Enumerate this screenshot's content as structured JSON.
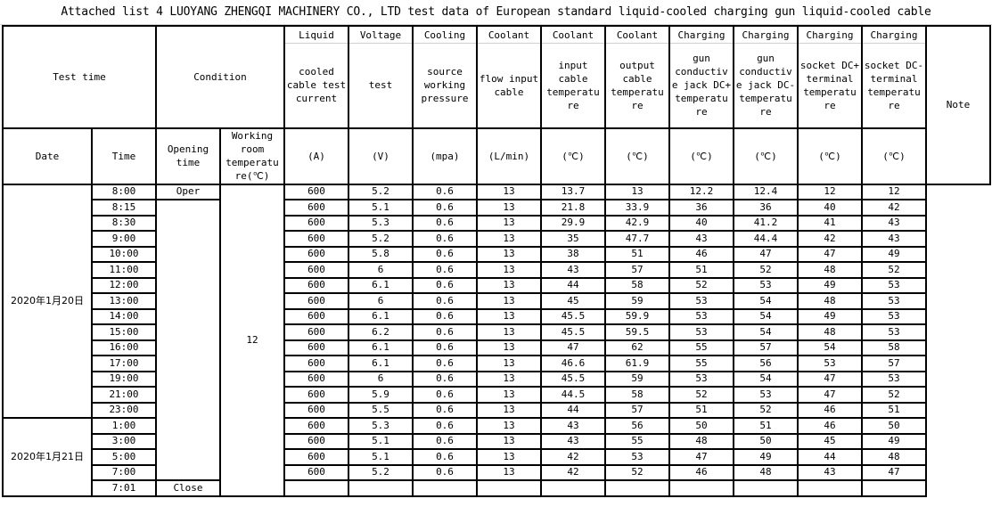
{
  "title": "Attached list 4 LUOYANG ZHENGQI MACHINERY CO., LTD test data of European standard liquid-cooled charging gun liquid-cooled cable",
  "header": {
    "test_time": "Test time",
    "condition": "Condition",
    "note": "Note",
    "date": "Date",
    "time": "Time",
    "opening_time": "Opening time",
    "room_temp": "Working room temperatu re(℃)",
    "columns": [
      {
        "top": "Liquid",
        "desc": "cooled cable test current",
        "unit": "(A)"
      },
      {
        "top": "Voltage",
        "desc": "test",
        "unit": "(V)"
      },
      {
        "top": "Cooling",
        "desc": "source working pressure",
        "unit": "(mpa)"
      },
      {
        "top": "Coolant",
        "desc": "flow input cable",
        "unit": "(L/min)"
      },
      {
        "top": "Coolant",
        "desc": "input cable temperatu re",
        "unit": "(℃)"
      },
      {
        "top": "Coolant",
        "desc": "output cable temperatu re",
        "unit": "(℃)"
      },
      {
        "top": "Charging",
        "desc": "gun conductiv e jack DC+ temperatu re",
        "unit": "(℃)"
      },
      {
        "top": "Charging",
        "desc": "gun conductiv e jack DC- temperatu re",
        "unit": "(℃)"
      },
      {
        "top": "Charging",
        "desc": "socket DC+ terminal temperatu re",
        "unit": "(℃)"
      },
      {
        "top": "Charging",
        "desc": "socket DC- terminal temperatu re",
        "unit": "(℃)"
      }
    ]
  },
  "dates": [
    "2020年1月20日",
    "2020年1月21日"
  ],
  "opening": {
    "open": "Oper",
    "close": "Close"
  },
  "room_temperature": "12",
  "rows": [
    {
      "time": "8:00",
      "values": [
        "600",
        "5.2",
        "0.6",
        "13",
        "13.7",
        "13",
        "12.2",
        "12.4",
        "12",
        "12"
      ]
    },
    {
      "time": "8:15",
      "values": [
        "600",
        "5.1",
        "0.6",
        "13",
        "21.8",
        "33.9",
        "36",
        "36",
        "40",
        "42"
      ]
    },
    {
      "time": "8:30",
      "values": [
        "600",
        "5.3",
        "0.6",
        "13",
        "29.9",
        "42.9",
        "40",
        "41.2",
        "41",
        "43"
      ]
    },
    {
      "time": "9:00",
      "values": [
        "600",
        "5.2",
        "0.6",
        "13",
        "35",
        "47.7",
        "43",
        "44.4",
        "42",
        "43"
      ]
    },
    {
      "time": "10:00",
      "values": [
        "600",
        "5.8",
        "0.6",
        "13",
        "38",
        "51",
        "46",
        "47",
        "47",
        "49"
      ]
    },
    {
      "time": "11:00",
      "values": [
        "600",
        "6",
        "0.6",
        "13",
        "43",
        "57",
        "51",
        "52",
        "48",
        "52"
      ]
    },
    {
      "time": "12:00",
      "values": [
        "600",
        "6.1",
        "0.6",
        "13",
        "44",
        "58",
        "52",
        "53",
        "49",
        "53"
      ]
    },
    {
      "time": "13:00",
      "values": [
        "600",
        "6",
        "0.6",
        "13",
        "45",
        "59",
        "53",
        "54",
        "48",
        "53"
      ]
    },
    {
      "time": "14:00",
      "values": [
        "600",
        "6.1",
        "0.6",
        "13",
        "45.5",
        "59.9",
        "53",
        "54",
        "49",
        "53"
      ]
    },
    {
      "time": "15:00",
      "values": [
        "600",
        "6.2",
        "0.6",
        "13",
        "45.5",
        "59.5",
        "53",
        "54",
        "48",
        "53"
      ]
    },
    {
      "time": "16:00",
      "values": [
        "600",
        "6.1",
        "0.6",
        "13",
        "47",
        "62",
        "55",
        "57",
        "54",
        "58"
      ]
    },
    {
      "time": "17:00",
      "values": [
        "600",
        "6.1",
        "0.6",
        "13",
        "46.6",
        "61.9",
        "55",
        "56",
        "53",
        "57"
      ]
    },
    {
      "time": "19:00",
      "values": [
        "600",
        "6",
        "0.6",
        "13",
        "45.5",
        "59",
        "53",
        "54",
        "47",
        "53"
      ]
    },
    {
      "time": "21:00",
      "values": [
        "600",
        "5.9",
        "0.6",
        "13",
        "44.5",
        "58",
        "52",
        "53",
        "47",
        "52"
      ]
    },
    {
      "time": "23:00",
      "values": [
        "600",
        "5.5",
        "0.6",
        "13",
        "44",
        "57",
        "51",
        "52",
        "46",
        "51"
      ]
    },
    {
      "time": "1:00",
      "values": [
        "600",
        "5.3",
        "0.6",
        "13",
        "43",
        "56",
        "50",
        "51",
        "46",
        "50"
      ]
    },
    {
      "time": "3:00",
      "values": [
        "600",
        "5.1",
        "0.6",
        "13",
        "43",
        "55",
        "48",
        "50",
        "45",
        "49"
      ]
    },
    {
      "time": "5:00",
      "values": [
        "600",
        "5.1",
        "0.6",
        "13",
        "42",
        "53",
        "47",
        "49",
        "44",
        "48"
      ]
    },
    {
      "time": "7:00",
      "values": [
        "600",
        "5.2",
        "0.6",
        "13",
        "42",
        "52",
        "46",
        "48",
        "43",
        "47"
      ]
    },
    {
      "time": "7:01",
      "values": [
        "",
        "",
        "",
        "",
        "",
        "",
        "",
        "",
        "",
        ""
      ]
    }
  ]
}
